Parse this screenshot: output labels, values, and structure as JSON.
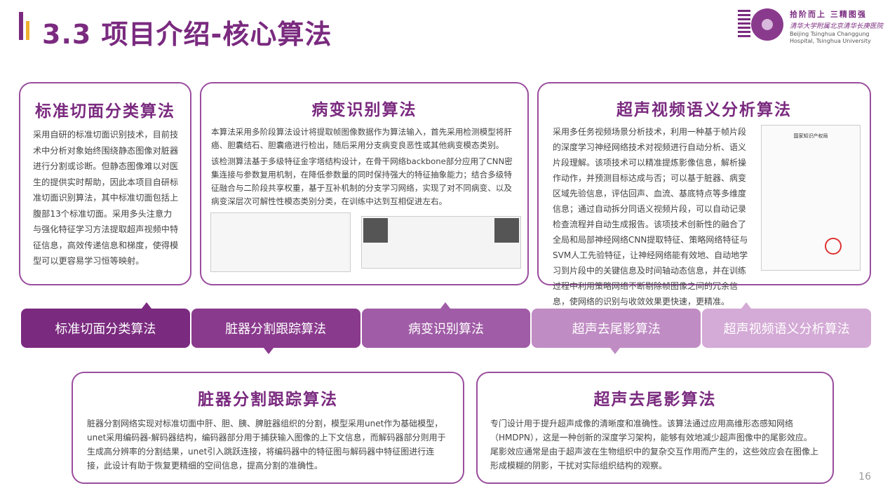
{
  "header": {
    "title": "3.3 项目介绍-核心算法",
    "logo_slogan": "拾阶而上 三精图强",
    "logo_name": "清华大学附属北京清华长庚医院",
    "logo_en": "Beijing Tsinghua Changgung Hospital, Tsinghua University"
  },
  "cards": {
    "standard": {
      "title": "标准切面分类算法",
      "text": "采用自研的标准切面识别技术，目前技术中分析对象始终围绕静态图像对脏器进行分割或诊断。但静态图像难以对医生的提供实时帮助，因此本项目自研标准切面识别算法，其中标准切面包括上腹部13个标准切面。采用多头注意力与强化特征学习方法提取超声视频中特征信息，高效传递信息和梯度，使得模型可以更容易学习恒等映射。"
    },
    "lesion": {
      "title": "病变识别算法",
      "text1": "本算法采用多阶段算法设计将提取帧图像数据作为算法输入，首先采用检测模型将肝癌、胆囊结石、胆囊癌进行检出，随后采用分支病变良恶性或其他病变模态类别。",
      "text2": "该检测算法基于多级特征金字塔结构设计，在骨干网络backbone部分应用了CNN密集连接与参数复用机制，在降低参数量的同时保持强大的特征抽象能力；结合多级特征融合与二阶段共享权重，基于互补机制的分支学习网络，实现了对不同病变、以及病变深层次可解性性模态类别分类，在训练中达到互相促进左右。"
    },
    "video": {
      "title": "超声视频语义分析算法",
      "text": "采用多任务视频场景分析技术，利用一种基于帧片段的深度学习神经网络技术对视频进行自动分析、语义片段理解。该项技术可以精准提炼影像信息，解析操作动作，并预测目标达成与否；可以基于脏器、病变区域先验信息，评估回声、血流、基底特点等多维度信息；通过自动拆分同语义视频片段，可以自动记录检查流程并自动生成报告。该项技术创新性的融合了全局和局部神经网络CNN提取特征、策略网络特征与SVM人工先验特征，让神经网络能有效地、自动地学习到片段中的关键信息及时间轴动态信息，并在训练过程中利用策略网络不断剔除帧图像之间的冗余信息，使网络的识别与收敛效果更快速，更精准。",
      "patent_title": "国家知识产权局"
    },
    "organ": {
      "title": "脏器分割跟踪算法",
      "text": "脏器分割网络实现对标准切面中肝、胆、胰、脾脏器组织的分割，模型采用unet作为基础模型，unet采用编码器-解码器结构，编码器部分用于捕获输入图像的上下文信息，而解码器部分则用于生成高分辨率的分割结果，unet引入跳跃连接，将编码器中的特征图与解码器中特征图进行连接，此设计有助于恢复更精细的空间信息，提高分割的准确性。"
    },
    "artifact": {
      "title": "超声去尾影算法",
      "text": "专门设计用于提升超声成像的清晰度和准确性。该算法通过应用高维形态感知网络（HMDPN），这是一种创新的深度学习架构，能够有效地减少超声图像中的尾影效应。尾影效应通常是由于超声波在生物组织中的复杂交互作用而产生的，这些效应会在图像上形成模糊的阴影，干扰对实际组织结构的观察。"
    }
  },
  "tabs": [
    {
      "label": "标准切面分类算法",
      "color": "#7a2a7f"
    },
    {
      "label": "脏器分割跟踪算法",
      "color": "#8a3a8d"
    },
    {
      "label": "病变识别算法",
      "color": "#a05ca6"
    },
    {
      "label": "超声去尾影算法",
      "color": "#c08cc4"
    },
    {
      "label": "超声视频语义分析算法",
      "color": "#d4aad6"
    }
  ],
  "page_number": "16"
}
